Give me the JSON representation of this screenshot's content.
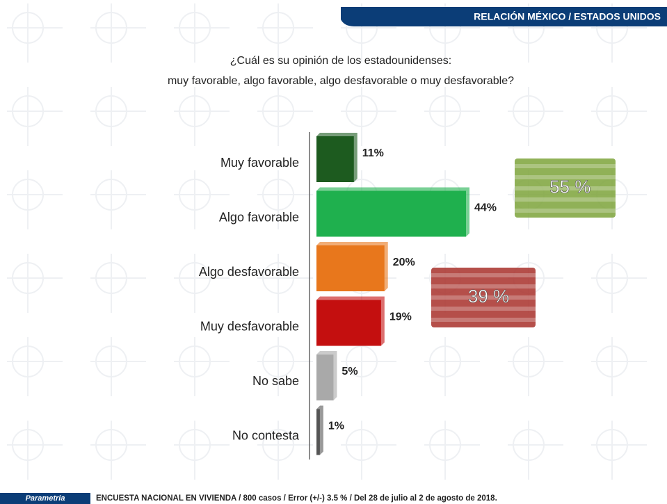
{
  "header": "RELACIÓN MÉXICO / ESTADOS UNIDOS",
  "chart_data": {
    "type": "hbar",
    "title_lines": [
      "¿Cuál es su opinión de los estadounidenses:",
      "muy favorable, algo favorable, algo desfavorable o muy desfavorable?"
    ],
    "categories": [
      "Muy favorable",
      "Algo favorable",
      "Algo desfavorable",
      "Muy desfavorable",
      "No sabe",
      "No contesta"
    ],
    "values": [
      11,
      44,
      20,
      19,
      5,
      1
    ],
    "value_labels": [
      "11%",
      "44%",
      "20%",
      "19%",
      "5%",
      "1%"
    ],
    "colors": [
      "#1d5b1f",
      "#1fb04e",
      "#e8771c",
      "#c40f0f",
      "#a9a9a9",
      "#555555"
    ],
    "annotations": [
      {
        "text": "55 %",
        "color": "#7da33a"
      },
      {
        "text": "39 %",
        "color": "#a8302a"
      }
    ]
  },
  "footer": {
    "logo": "Parametria",
    "note": "ENCUESTA NACIONAL EN VIVIENDA / 800 casos / Error (+/-) 3.5 % / Del 28 de julio al 2 de agosto de 2018."
  }
}
